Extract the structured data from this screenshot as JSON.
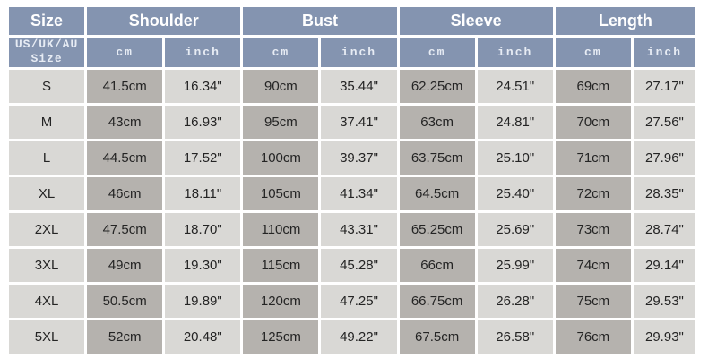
{
  "colors": {
    "header_bg": "#8494b0",
    "header_text": "#ffffff",
    "unit_text": "#e7ecf4",
    "cell_cm_bg": "#b5b2ae",
    "cell_inch_bg": "#d9d8d5",
    "cell_text": "#242424",
    "grid_gap": "#ffffff"
  },
  "chart_data": {
    "type": "table",
    "column_groups": [
      {
        "label": "Size",
        "span": 1
      },
      {
        "label": "Shoulder",
        "span": 2
      },
      {
        "label": "Bust",
        "span": 2
      },
      {
        "label": "Sleeve",
        "span": 2
      },
      {
        "label": "Length",
        "span": 2
      }
    ],
    "sub_header": {
      "size_line1": "US/UK/AU",
      "size_line2": "Size",
      "units": [
        "cm",
        "inch",
        "cm",
        "inch",
        "cm",
        "inch",
        "cm",
        "inch"
      ]
    },
    "rows": [
      [
        "S",
        "41.5cm",
        "16.34\"",
        "90cm",
        "35.44\"",
        "62.25cm",
        "24.51\"",
        "69cm",
        "27.17\""
      ],
      [
        "M",
        "43cm",
        "16.93\"",
        "95cm",
        "37.41\"",
        "63cm",
        "24.81\"",
        "70cm",
        "27.56\""
      ],
      [
        "L",
        "44.5cm",
        "17.52\"",
        "100cm",
        "39.37\"",
        "63.75cm",
        "25.10\"",
        "71cm",
        "27.96\""
      ],
      [
        "XL",
        "46cm",
        "18.11\"",
        "105cm",
        "41.34\"",
        "64.5cm",
        "25.40\"",
        "72cm",
        "28.35\""
      ],
      [
        "2XL",
        "47.5cm",
        "18.70\"",
        "110cm",
        "43.31\"",
        "65.25cm",
        "25.69\"",
        "73cm",
        "28.74\""
      ],
      [
        "3XL",
        "49cm",
        "19.30\"",
        "115cm",
        "45.28\"",
        "66cm",
        "25.99\"",
        "74cm",
        "29.14\""
      ],
      [
        "4XL",
        "50.5cm",
        "19.89\"",
        "120cm",
        "47.25\"",
        "66.75cm",
        "26.28\"",
        "75cm",
        "29.53\""
      ],
      [
        "5XL",
        "52cm",
        "20.48\"",
        "125cm",
        "49.22\"",
        "67.5cm",
        "26.58\"",
        "76cm",
        "29.93\""
      ]
    ]
  }
}
